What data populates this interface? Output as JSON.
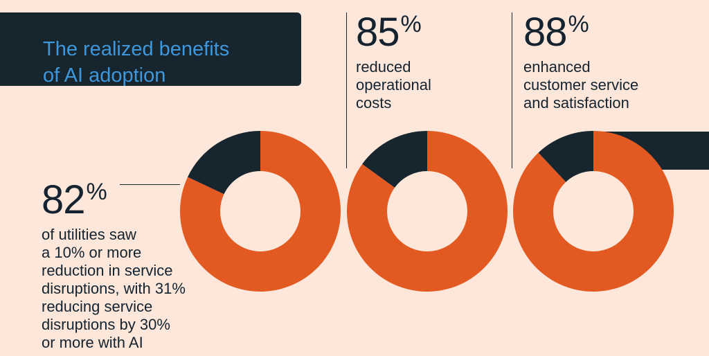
{
  "title": "The realized benefits\nof AI adoption",
  "colors": {
    "background": "#fde7da",
    "navy": "#17252f",
    "orange": "#e25a21",
    "title_blue": "#3f97db"
  },
  "stats": [
    {
      "value": "82",
      "unit": "%",
      "description": "of utilities saw\na 10% or more\nreduction in service\ndisruptions, with 31%\nreducing service\ndisruptions by 30%\nor more with AI"
    },
    {
      "value": "85",
      "unit": "%",
      "description": "reduced\noperational\ncosts"
    },
    {
      "value": "88",
      "unit": "%",
      "description": "enhanced\ncustomer service\nand satisfaction"
    }
  ],
  "chart_data": {
    "type": "pie",
    "charts": [
      {
        "values": [
          82,
          18
        ],
        "colors": [
          "#e25a21",
          "#17252f"
        ]
      },
      {
        "values": [
          85,
          15
        ],
        "colors": [
          "#e25a21",
          "#17252f"
        ]
      },
      {
        "values": [
          88,
          12
        ],
        "colors": [
          "#e25a21",
          "#17252f"
        ]
      }
    ]
  }
}
